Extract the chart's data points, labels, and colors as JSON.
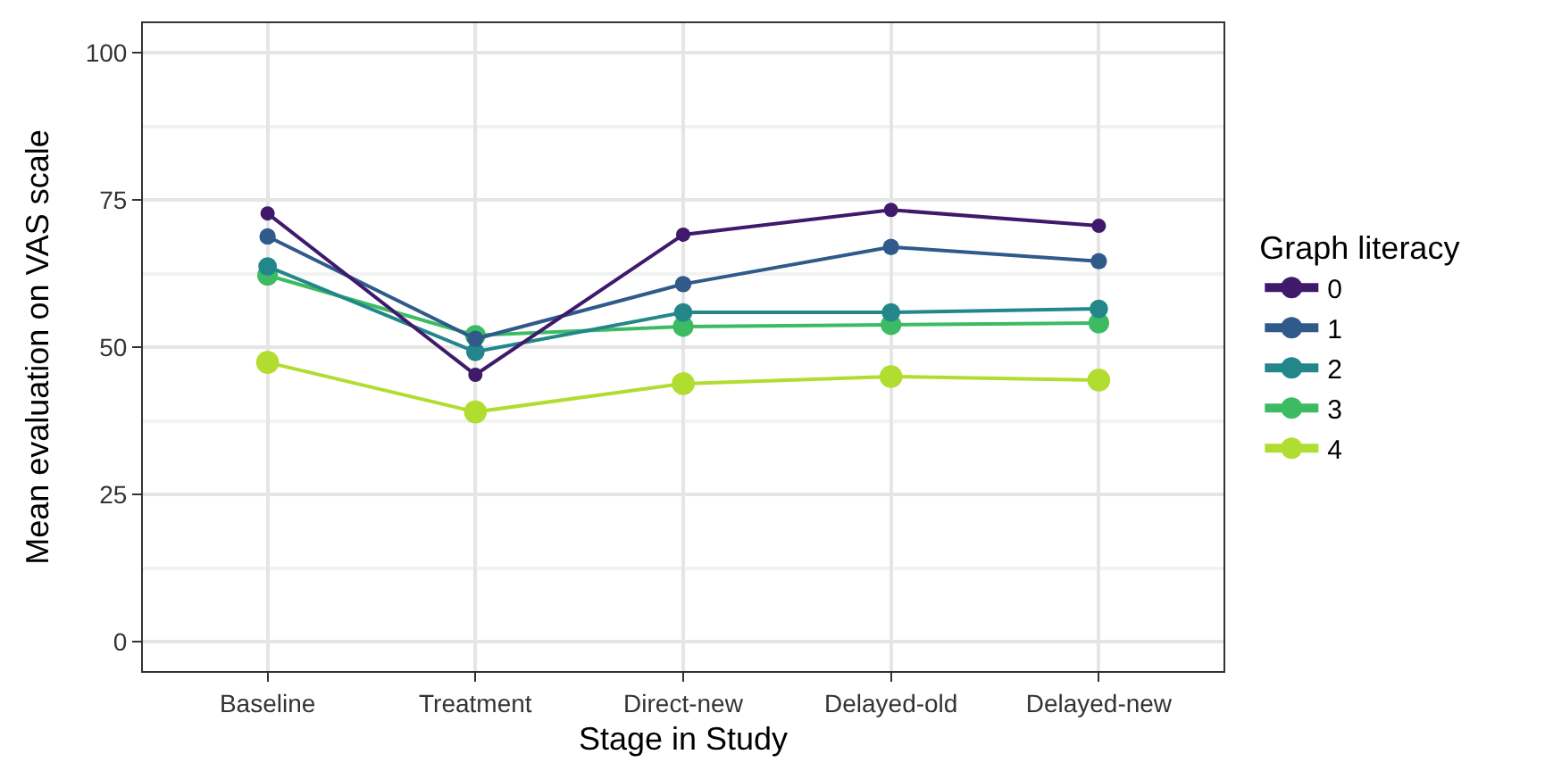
{
  "chart_data": {
    "type": "line",
    "xlabel": "Stage in Study",
    "ylabel": "Mean evaluation on VAS scale",
    "legend_title": "Graph literacy",
    "categories": [
      "Baseline",
      "Treatment",
      "Direct-new",
      "Delayed-old",
      "Delayed-new"
    ],
    "series": [
      {
        "name": "0",
        "color": "#3f1a6a",
        "values": [
          72.7,
          45.3,
          69.1,
          73.3,
          70.6
        ]
      },
      {
        "name": "1",
        "color": "#2f5a8a",
        "values": [
          68.8,
          51.4,
          60.7,
          67.0,
          64.6
        ]
      },
      {
        "name": "2",
        "color": "#23868a",
        "values": [
          63.7,
          49.2,
          55.9,
          55.9,
          56.5
        ]
      },
      {
        "name": "3",
        "color": "#3dbb63",
        "values": [
          62.2,
          52.0,
          53.5,
          53.8,
          54.1
        ]
      },
      {
        "name": "4",
        "color": "#b0dd2f",
        "values": [
          47.4,
          39.0,
          43.8,
          45.0,
          44.4
        ]
      }
    ],
    "ylim": [
      -5,
      105
    ],
    "yticks": [
      0,
      25,
      50,
      75,
      100
    ],
    "grid": true,
    "legend": "right",
    "marker": "circle",
    "line_style": "solid"
  }
}
